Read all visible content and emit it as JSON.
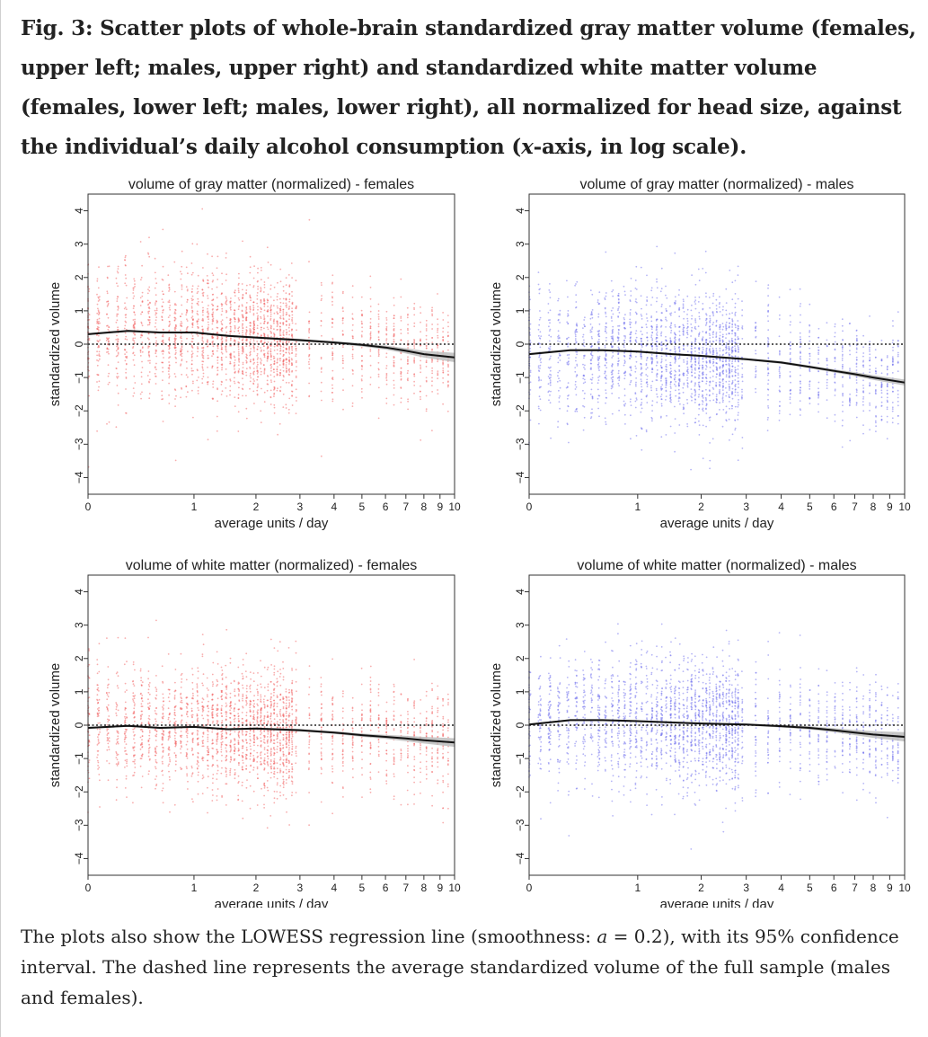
{
  "caption": {
    "prefix": "Fig. 3: Scatter plots of whole-brain standardized gray matter volume (females, upper left; males, upper right) and standardized white matter volume (females, lower left; males, lower right), all normalized for head size, against the individual’s daily alcohol consumption (",
    "x_italic": "x",
    "suffix": "-axis, in log scale)."
  },
  "note": {
    "part1": "The plots also show the LOWESS regression line (smoothness: ",
    "alpha_symbol": "a",
    "part2": " = 0.2), with its 95% confidence interval. The dashed line represents the average standardized volume of the full sample (males and females)."
  },
  "colors": {
    "females": "#f36a6a",
    "males": "#7878ee",
    "lowess": "#111111",
    "ci": "#bdbdbd",
    "reference": "#222222"
  },
  "chart_data": [
    {
      "type": "scatter",
      "title": "volume of gray matter (normalized) - females",
      "xlabel": "average units / day",
      "ylabel": "standardized volume",
      "x_scale": "log(1+x)",
      "xlim": [
        0,
        10
      ],
      "ylim": [
        -4.5,
        4.5
      ],
      "x_ticks": [
        "0",
        "1",
        "2",
        "3",
        "4",
        "5",
        "6",
        "7",
        "8",
        "9",
        "10"
      ],
      "y_ticks": [
        "4",
        "3",
        "2",
        "1",
        "0",
        "-1",
        "-2",
        "-3",
        "-4"
      ],
      "reference_line_y": 0,
      "grid": false,
      "point_color": "females",
      "scatter_spread_sd": 0.95,
      "lowess": {
        "x": [
          0,
          0.3,
          0.6,
          1,
          1.5,
          2,
          3,
          4,
          5,
          6,
          7,
          8,
          10
        ],
        "y": [
          0.3,
          0.4,
          0.35,
          0.35,
          0.25,
          0.2,
          0.12,
          0.05,
          -0.02,
          -0.1,
          -0.2,
          -0.3,
          -0.4
        ]
      },
      "ci_half_width": [
        0.03,
        0.03,
        0.03,
        0.03,
        0.03,
        0.03,
        0.04,
        0.04,
        0.05,
        0.06,
        0.08,
        0.1,
        0.14
      ]
    },
    {
      "type": "scatter",
      "title": "volume of gray matter (normalized) - males",
      "xlabel": "average units / day",
      "ylabel": "standardized volume",
      "x_scale": "log(1+x)",
      "xlim": [
        0,
        10
      ],
      "ylim": [
        -4.5,
        4.5
      ],
      "x_ticks": [
        "0",
        "1",
        "2",
        "3",
        "4",
        "5",
        "6",
        "7",
        "8",
        "9",
        "10"
      ],
      "y_ticks": [
        "4",
        "3",
        "2",
        "1",
        "0",
        "-1",
        "-2",
        "-3",
        "-4"
      ],
      "reference_line_y": 0,
      "grid": false,
      "point_color": "males",
      "scatter_spread_sd": 0.95,
      "lowess": {
        "x": [
          0,
          0.3,
          0.6,
          1,
          1.5,
          2,
          3,
          4,
          5,
          6,
          7,
          8,
          10
        ],
        "y": [
          -0.3,
          -0.18,
          -0.18,
          -0.22,
          -0.3,
          -0.35,
          -0.45,
          -0.55,
          -0.68,
          -0.8,
          -0.9,
          -1.0,
          -1.15
        ]
      },
      "ci_half_width": [
        0.03,
        0.03,
        0.03,
        0.03,
        0.03,
        0.03,
        0.03,
        0.04,
        0.04,
        0.05,
        0.06,
        0.07,
        0.09
      ]
    },
    {
      "type": "scatter",
      "title": "volume of white matter (normalized) - females",
      "xlabel": "average units / day",
      "ylabel": "standardized volume",
      "x_scale": "log(1+x)",
      "xlim": [
        0,
        10
      ],
      "ylim": [
        -4.5,
        4.5
      ],
      "x_ticks": [
        "0",
        "1",
        "2",
        "3",
        "4",
        "5",
        "6",
        "7",
        "8",
        "9",
        "10"
      ],
      "y_ticks": [
        "4",
        "3",
        "2",
        "1",
        "0",
        "-1",
        "-2",
        "-3",
        "-4"
      ],
      "reference_line_y": 0,
      "grid": false,
      "point_color": "females",
      "scatter_spread_sd": 0.95,
      "lowess": {
        "x": [
          0,
          0.3,
          0.6,
          1,
          1.5,
          2,
          3,
          4,
          5,
          6,
          7,
          8,
          10
        ],
        "y": [
          -0.08,
          -0.02,
          -0.08,
          -0.05,
          -0.12,
          -0.1,
          -0.15,
          -0.22,
          -0.3,
          -0.35,
          -0.4,
          -0.45,
          -0.52
        ]
      },
      "ci_half_width": [
        0.03,
        0.03,
        0.03,
        0.03,
        0.03,
        0.03,
        0.04,
        0.04,
        0.05,
        0.06,
        0.08,
        0.1,
        0.13
      ]
    },
    {
      "type": "scatter",
      "title": "volume of white matter (normalized) - males",
      "xlabel": "average units / day",
      "ylabel": "standardized volume",
      "x_scale": "log(1+x)",
      "xlim": [
        0,
        10
      ],
      "ylim": [
        -4.5,
        4.5
      ],
      "x_ticks": [
        "0",
        "1",
        "2",
        "3",
        "4",
        "5",
        "6",
        "7",
        "8",
        "9",
        "10"
      ],
      "y_ticks": [
        "4",
        "3",
        "2",
        "1",
        "0",
        "-1",
        "-2",
        "-3",
        "-4"
      ],
      "reference_line_y": 0,
      "grid": false,
      "point_color": "males",
      "scatter_spread_sd": 0.95,
      "lowess": {
        "x": [
          0,
          0.3,
          0.6,
          1,
          1.5,
          2,
          3,
          4,
          5,
          6,
          7,
          8,
          10
        ],
        "y": [
          0.02,
          0.15,
          0.15,
          0.12,
          0.08,
          0.05,
          0.02,
          -0.03,
          -0.08,
          -0.15,
          -0.22,
          -0.28,
          -0.35
        ]
      },
      "ci_half_width": [
        0.03,
        0.03,
        0.03,
        0.03,
        0.03,
        0.03,
        0.03,
        0.04,
        0.05,
        0.06,
        0.08,
        0.1,
        0.14
      ]
    }
  ]
}
